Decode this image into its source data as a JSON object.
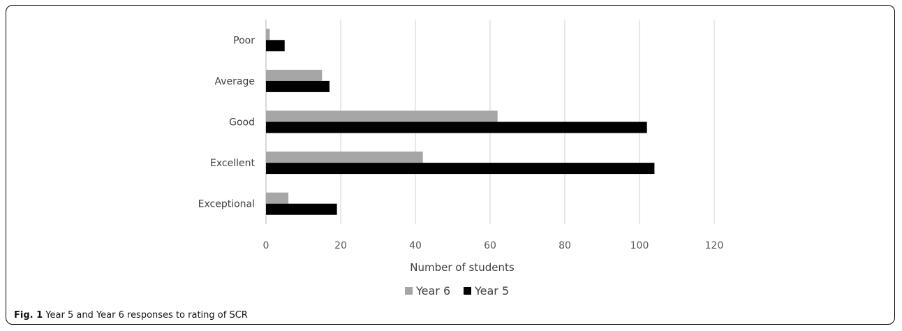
{
  "caption": {
    "label": "Fig. 1",
    "text": "Year 5 and Year 6 responses to rating of SCR"
  },
  "chart_data": {
    "type": "bar",
    "orientation": "horizontal",
    "categories": [
      "Poor",
      "Average",
      "Good",
      "Excellent",
      "Exceptional"
    ],
    "series": [
      {
        "name": "Year 6",
        "color": "#a6a6a6",
        "values": [
          1,
          15,
          62,
          42,
          6
        ]
      },
      {
        "name": "Year 5",
        "color": "#000000",
        "values": [
          5,
          17,
          102,
          104,
          19
        ]
      }
    ],
    "xlabel": "Number of students",
    "ylabel": "",
    "xlim": [
      0,
      120
    ],
    "xticks": [
      0,
      20,
      40,
      60,
      80,
      100,
      120
    ],
    "grid": true,
    "legend_position": "bottom",
    "legend_order": [
      "Year 6",
      "Year 5"
    ]
  }
}
